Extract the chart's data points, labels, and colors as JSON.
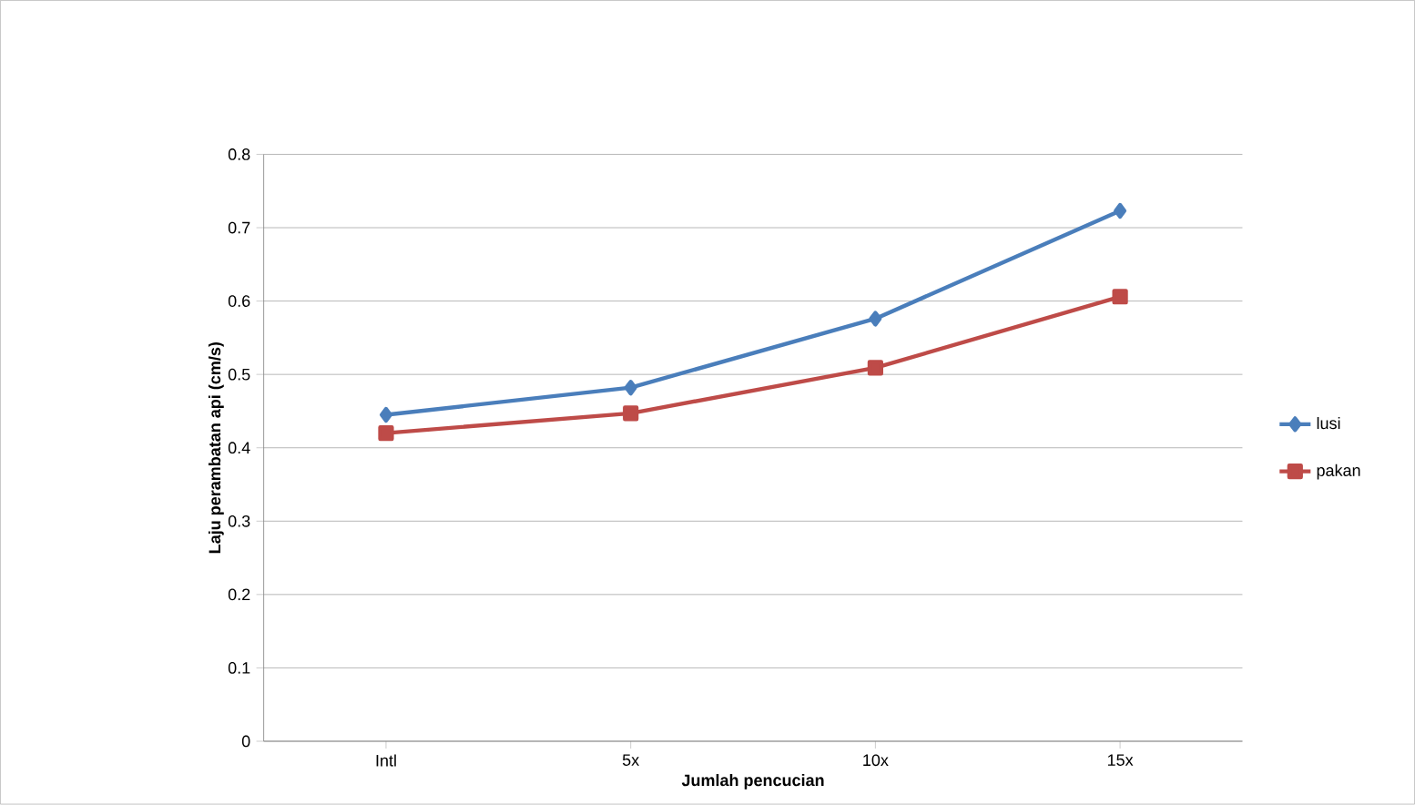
{
  "chart_data": {
    "type": "line",
    "xlabel": "Jumlah pencucian",
    "ylabel": "Laju perambatan api (cm/s)",
    "categories": [
      "Intl",
      "5x",
      "10x",
      "15x"
    ],
    "series": [
      {
        "name": "lusi",
        "color": "#4a7ebb",
        "marker": "diamond",
        "values": [
          0.445,
          0.482,
          0.576,
          0.723
        ]
      },
      {
        "name": "pakan",
        "color": "#be4b48",
        "marker": "square",
        "values": [
          0.42,
          0.447,
          0.509,
          0.606
        ]
      }
    ],
    "ylim": [
      0,
      0.8
    ],
    "yticks": [
      0,
      0.1,
      0.2,
      0.3,
      0.4,
      0.5,
      0.6,
      0.7,
      0.8
    ],
    "grid": "y",
    "legend": "right"
  }
}
